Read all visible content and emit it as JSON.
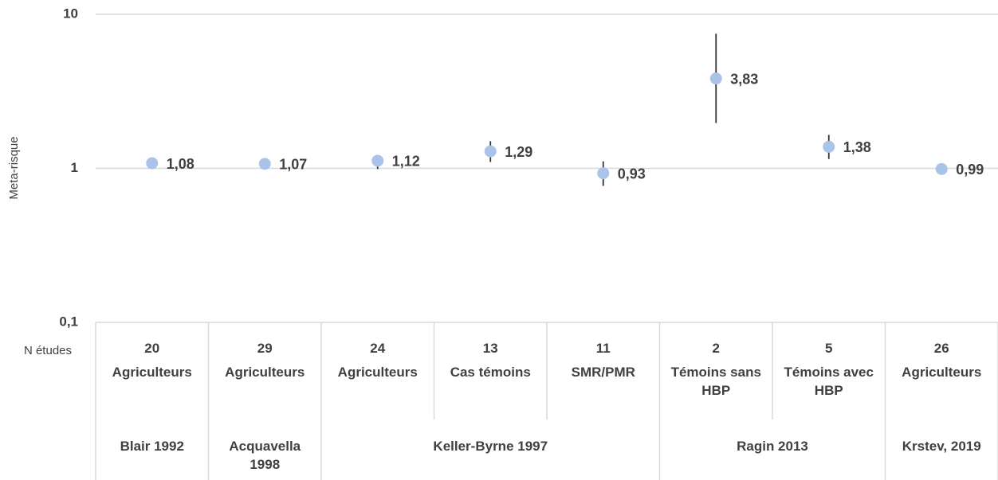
{
  "chart_data": {
    "type": "scatter",
    "ylabel": "Meta-risque",
    "log_y": true,
    "ylim": [
      0.1,
      10
    ],
    "yticks": [
      {
        "value": 0.1,
        "label": "0,1"
      },
      1,
      10
    ],
    "grid": true,
    "color": "#a9c4e8",
    "categories": [
      "Agriculteurs",
      "Agriculteurs",
      "Agriculteurs",
      "Cas témoins",
      "SMR/PMR",
      "Témoins sans HBP",
      "Témoins avec HBP",
      "Agriculteurs"
    ],
    "values": [
      1.08,
      1.07,
      1.12,
      1.29,
      0.93,
      3.83,
      1.38,
      0.99
    ],
    "value_labels": [
      "1,08",
      "1,07",
      "1,12",
      "1,29",
      "0,93",
      "3,83",
      "1,38",
      "0,99"
    ],
    "ci_low": [
      null,
      null,
      0.99,
      1.1,
      0.77,
      1.97,
      1.15,
      null
    ],
    "ci_high": [
      null,
      null,
      1.21,
      1.5,
      1.11,
      7.48,
      1.65,
      null
    ],
    "n_label": "N études",
    "n_studies": [
      20,
      29,
      24,
      13,
      11,
      2,
      5,
      26
    ],
    "groups": [
      {
        "label": "Blair 1992",
        "span": 1
      },
      {
        "label": "Acquavella 1998",
        "span": 1
      },
      {
        "label": "Keller-Byrne 1997",
        "span": 3
      },
      {
        "label": "Ragin 2013",
        "span": 2
      },
      {
        "label": "Krstev, 2019",
        "span": 1
      }
    ]
  }
}
